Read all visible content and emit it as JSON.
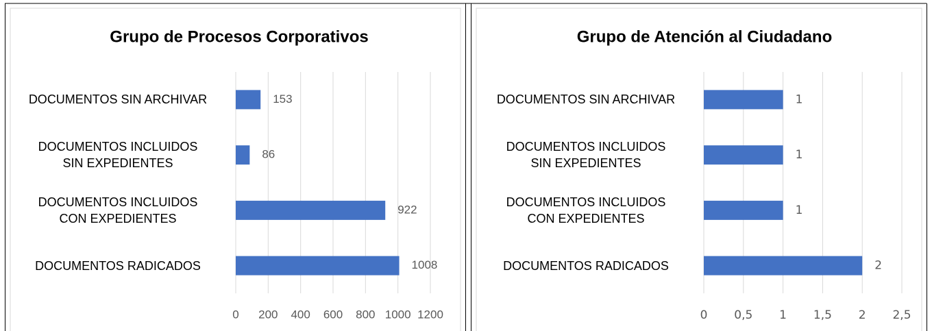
{
  "chart_data": [
    {
      "type": "bar",
      "orientation": "horizontal",
      "title": "Grupo de Procesos Corporativos",
      "categories": [
        "DOCUMENTOS SIN ARCHIVAR",
        "DOCUMENTOS INCLUIDOS\nSIN EXPEDIENTES",
        "DOCUMENTOS INCLUIDOS\nCON EXPEDIENTES",
        "DOCUMENTOS RADICADOS"
      ],
      "values": [
        153,
        86,
        922,
        1008
      ],
      "color": "#4472c4",
      "xlim": [
        0,
        1200
      ],
      "xticks": [
        0,
        200,
        400,
        600,
        800,
        1000,
        1200
      ],
      "grid": true
    },
    {
      "type": "bar",
      "orientation": "horizontal",
      "title": "Grupo de Atención al Ciudadano",
      "categories": [
        "DOCUMENTOS SIN ARCHIVAR",
        "DOCUMENTOS INCLUIDOS\nSIN EXPEDIENTES",
        "DOCUMENTOS INCLUIDOS\nCON EXPEDIENTES",
        "DOCUMENTOS RADICADOS"
      ],
      "values": [
        1,
        1,
        1,
        2
      ],
      "color": "#4472c4",
      "xlim": [
        0,
        2.5
      ],
      "xticks": [
        0,
        {
          "value": 0.5,
          "label": "0,5"
        },
        1,
        {
          "value": 1.5,
          "label": "1,5"
        },
        2,
        {
          "value": 2.5,
          "label": "2,5"
        }
      ],
      "grid": true
    }
  ]
}
